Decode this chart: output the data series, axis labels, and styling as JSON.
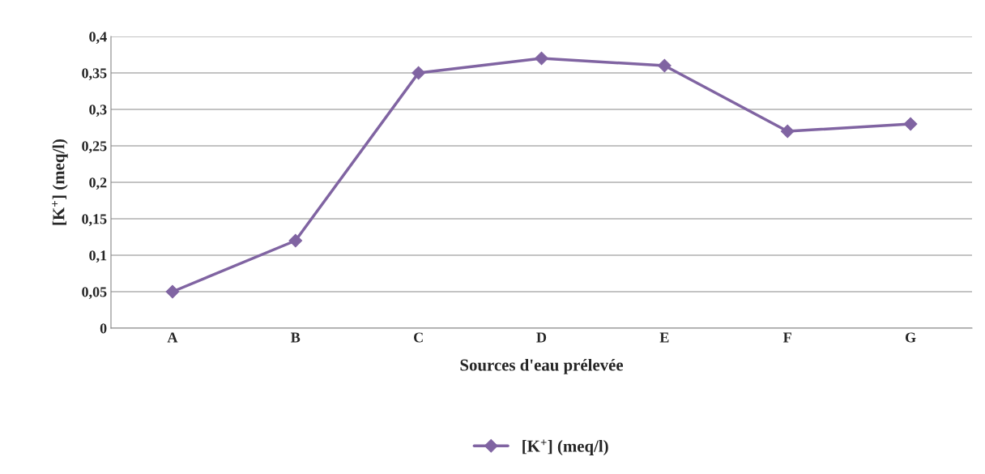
{
  "chart_data": {
    "type": "line",
    "xlabel": "Sources d'eau prélevée",
    "ylabel": "[K$^{+}$] (meq/l)",
    "categories": [
      "A",
      "B",
      "C",
      "D",
      "E",
      "F",
      "G"
    ],
    "series": [
      {
        "name": "[K$^{+}$] (meq/l)",
        "color": "#8064a2",
        "values": [
          0.05,
          0.12,
          0.35,
          0.37,
          0.36,
          0.27,
          0.28
        ]
      }
    ],
    "ylim": [
      0,
      0.4
    ],
    "yticks": [
      0,
      {
        "value": 0.05,
        "label": "0,05"
      },
      {
        "value": 0.1,
        "label": "0,1"
      },
      {
        "value": 0.15,
        "label": "0,15"
      },
      {
        "value": 0.2,
        "label": "0,2"
      },
      {
        "value": 0.25,
        "label": "0,25"
      },
      {
        "value": 0.3,
        "label": "0,3"
      },
      {
        "value": 0.35,
        "label": "0,35"
      },
      {
        "value": 0.4,
        "label": "0,4"
      }
    ],
    "grid": "y",
    "legend": "bottom",
    "marker": "diamond",
    "line_style": "solid"
  }
}
